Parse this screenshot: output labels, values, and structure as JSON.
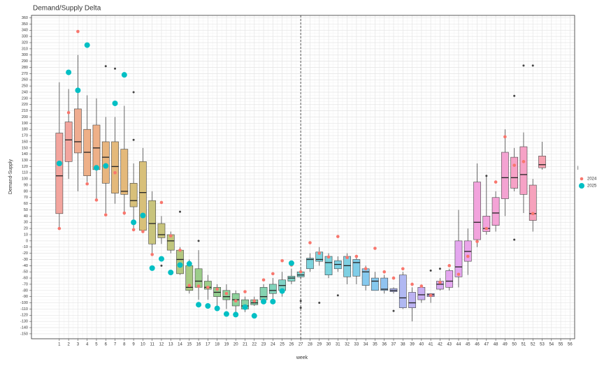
{
  "chart_data": {
    "type": "boxplot",
    "title": "Demand/Supply Delta",
    "x_label": "week",
    "y_label": "Demand-Supply",
    "legend_title": "l",
    "legend_position": "right",
    "grid": true,
    "vline": 27,
    "xlim": [
      -2,
      56.5
    ],
    "ylim": [
      -158,
      364
    ],
    "xticks": [
      1,
      2,
      3,
      4,
      5,
      6,
      7,
      8,
      9,
      10,
      11,
      12,
      13,
      14,
      15,
      16,
      17,
      18,
      19,
      20,
      21,
      22,
      23,
      24,
      25,
      26,
      27,
      28,
      29,
      30,
      31,
      32,
      33,
      34,
      35,
      36,
      37,
      38,
      39,
      40,
      41,
      42,
      43,
      44,
      45,
      46,
      47,
      48,
      49,
      50,
      51,
      52,
      53,
      54,
      55,
      56
    ],
    "yticks": [
      -150,
      -140,
      -130,
      -120,
      -110,
      -100,
      -90,
      -80,
      -70,
      -60,
      -50,
      -40,
      -30,
      -20,
      -10,
      0,
      10,
      20,
      30,
      40,
      50,
      60,
      70,
      80,
      90,
      100,
      110,
      120,
      130,
      140,
      150,
      160,
      170,
      180,
      190,
      200,
      210,
      220,
      230,
      240,
      250,
      260,
      270,
      280,
      290,
      300,
      310,
      320,
      330,
      340,
      350,
      360
    ],
    "boxes": [
      {
        "week": 1,
        "whisker_low": 20,
        "q1": 44,
        "median": 105,
        "q3": 174,
        "whisker_high": 256,
        "color": "#f3a59e"
      },
      {
        "week": 2,
        "whisker_low": 100,
        "q1": 128,
        "median": 163,
        "q3": 192,
        "whisker_high": 245,
        "color": "#f3a59e"
      },
      {
        "week": 3,
        "whisker_low": 80,
        "q1": 142,
        "median": 160,
        "q3": 213,
        "whisker_high": 300,
        "color": "#efac90"
      },
      {
        "week": 4,
        "whisker_low": 95,
        "q1": 105,
        "median": 143,
        "q3": 180,
        "whisker_high": 235,
        "color": "#eeb088"
      },
      {
        "week": 5,
        "whisker_low": 68,
        "q1": 115,
        "median": 150,
        "q3": 187,
        "whisker_high": 230,
        "color": "#eeb088"
      },
      {
        "week": 6,
        "whisker_low": 45,
        "q1": 93,
        "median": 135,
        "q3": 160,
        "whisker_high": 200,
        "color": "#e8b57e"
      },
      {
        "week": 7,
        "whisker_low": 60,
        "q1": 77,
        "median": 120,
        "q3": 160,
        "whisker_high": 200,
        "color": "#e4b97a"
      },
      {
        "week": 8,
        "whisker_low": 42,
        "q1": 75,
        "median": 80,
        "q3": 148,
        "whisker_high": 218,
        "color": "#e4b97a"
      },
      {
        "week": 9,
        "whisker_low": 20,
        "q1": 55,
        "median": 65,
        "q3": 93,
        "whisker_high": 125,
        "color": "#d8c07a"
      },
      {
        "week": 10,
        "whisker_low": 15,
        "q1": 17,
        "median": 78,
        "q3": 128,
        "whisker_high": 150,
        "color": "#d8c07a"
      },
      {
        "week": 11,
        "whisker_low": -20,
        "q1": -5,
        "median": 28,
        "q3": 65,
        "whisker_high": 80,
        "color": "#c8c47c"
      },
      {
        "week": 12,
        "whisker_low": -5,
        "q1": 5,
        "median": 10,
        "q3": 28,
        "whisker_high": 40,
        "color": "#c8c47c"
      },
      {
        "week": 13,
        "whisker_low": -20,
        "q1": -15,
        "median": 0,
        "q3": 10,
        "whisker_high": 15,
        "color": "#c0c67d"
      },
      {
        "week": 14,
        "whisker_low": -55,
        "q1": -53,
        "median": -30,
        "q3": -15,
        "whisker_high": -10,
        "color": "#b3c780"
      },
      {
        "week": 15,
        "whisker_low": -85,
        "q1": -80,
        "median": -75,
        "q3": -40,
        "whisker_high": -30,
        "color": "#a9ca84"
      },
      {
        "week": 16,
        "whisker_low": -95,
        "q1": -75,
        "median": -65,
        "q3": -45,
        "whisker_high": -15,
        "color": "#9ccd8a"
      },
      {
        "week": 17,
        "whisker_low": -95,
        "q1": -78,
        "median": -75,
        "q3": -65,
        "whisker_high": -55,
        "color": "#9ccd8a"
      },
      {
        "week": 18,
        "whisker_low": -105,
        "q1": -90,
        "median": -83,
        "q3": -75,
        "whisker_high": -70,
        "color": "#94cf90"
      },
      {
        "week": 19,
        "whisker_low": -110,
        "q1": -95,
        "median": -90,
        "q3": -80,
        "whisker_high": -70,
        "color": "#8dd19a"
      },
      {
        "week": 20,
        "whisker_low": -115,
        "q1": -105,
        "median": -95,
        "q3": -85,
        "whisker_high": -80,
        "color": "#8dd19a"
      },
      {
        "week": 21,
        "whisker_low": -115,
        "q1": -110,
        "median": -105,
        "q3": -95,
        "whisker_high": -90,
        "color": "#8ad2a4"
      },
      {
        "week": 22,
        "whisker_low": -105,
        "q1": -103,
        "median": -100,
        "q3": -95,
        "whisker_high": -90,
        "color": "#88d2aa"
      },
      {
        "week": 23,
        "whisker_low": -100,
        "q1": -95,
        "median": -90,
        "q3": -75,
        "whisker_high": -70,
        "color": "#85d3b0"
      },
      {
        "week": 24,
        "whisker_low": -95,
        "q1": -85,
        "median": -80,
        "q3": -70,
        "whisker_high": -60,
        "color": "#82d3bb"
      },
      {
        "week": 25,
        "whisker_low": -90,
        "q1": -80,
        "median": -72,
        "q3": -63,
        "whisker_high": -50,
        "color": "#7fd3c6"
      },
      {
        "week": 26,
        "whisker_low": -70,
        "q1": -65,
        "median": -60,
        "q3": -57,
        "whisker_high": -45,
        "color": "#7fd3c6"
      },
      {
        "week": 27,
        "whisker_low": -60,
        "q1": -58,
        "median": -55,
        "q3": -50,
        "whisker_high": -45,
        "color": "#7ed3d0"
      },
      {
        "week": 28,
        "whisker_low": -50,
        "q1": -45,
        "median": -30,
        "q3": -28,
        "whisker_high": -20,
        "color": "#7cd3dd"
      },
      {
        "week": 29,
        "whisker_low": -40,
        "q1": -33,
        "median": -30,
        "q3": -18,
        "whisker_high": -10,
        "color": "#7cd3dd"
      },
      {
        "week": 30,
        "whisker_low": -60,
        "q1": -55,
        "median": -35,
        "q3": -25,
        "whisker_high": -20,
        "color": "#7cd3dd"
      },
      {
        "week": 31,
        "whisker_low": -50,
        "q1": -45,
        "median": -38,
        "q3": -32,
        "whisker_high": -25,
        "color": "#7ed0e2"
      },
      {
        "week": 32,
        "whisker_low": -70,
        "q1": -58,
        "median": -40,
        "q3": -25,
        "whisker_high": -20,
        "color": "#7ed0e2"
      },
      {
        "week": 33,
        "whisker_low": -70,
        "q1": -57,
        "median": -35,
        "q3": -30,
        "whisker_high": -25,
        "color": "#80cde8"
      },
      {
        "week": 34,
        "whisker_low": -80,
        "q1": -72,
        "median": -50,
        "q3": -45,
        "whisker_high": -40,
        "color": "#86c9ee"
      },
      {
        "week": 35,
        "whisker_low": -80,
        "q1": -80,
        "median": -65,
        "q3": -60,
        "whisker_high": -50,
        "color": "#86c9ee"
      },
      {
        "week": 36,
        "whisker_low": -85,
        "q1": -80,
        "median": -78,
        "q3": -60,
        "whisker_high": -55,
        "color": "#90c3f0"
      },
      {
        "week": 37,
        "whisker_low": -85,
        "q1": -82,
        "median": -80,
        "q3": -77,
        "whisker_high": -75,
        "color": "#b0b8f2"
      },
      {
        "week": 38,
        "whisker_low": -110,
        "q1": -108,
        "median": -92,
        "q3": -55,
        "whisker_high": -50,
        "color": "#b0b8f2"
      },
      {
        "week": 39,
        "whisker_low": -130,
        "q1": -108,
        "median": -100,
        "q3": -83,
        "whisker_high": -75,
        "color": "#bcb3f2"
      },
      {
        "week": 40,
        "whisker_low": -100,
        "q1": -95,
        "median": -87,
        "q3": -75,
        "whisker_high": -72,
        "color": "#c8aef2"
      },
      {
        "week": 41,
        "whisker_low": -100,
        "q1": -90,
        "median": -87,
        "q3": -85,
        "whisker_high": -85,
        "color": "#c8aef2"
      },
      {
        "week": 42,
        "whisker_low": -80,
        "q1": -78,
        "median": -70,
        "q3": -65,
        "whisker_high": -60,
        "color": "#d6aaf1"
      },
      {
        "week": 43,
        "whisker_low": -80,
        "q1": -75,
        "median": -65,
        "q3": -48,
        "whisker_high": -45,
        "color": "#e4a6ef"
      },
      {
        "week": 44,
        "whisker_low": -75,
        "q1": -58,
        "median": -42,
        "q3": 0,
        "whisker_high": 50,
        "color": "#e4a6ef"
      },
      {
        "week": 45,
        "whisker_low": -55,
        "q1": -33,
        "median": -17,
        "q3": 0,
        "whisker_high": 20,
        "color": "#eaa5ea"
      },
      {
        "week": 46,
        "whisker_low": -10,
        "q1": 2,
        "median": 30,
        "q3": 95,
        "whisker_high": 125,
        "color": "#f2a3dd"
      },
      {
        "week": 47,
        "whisker_low": 10,
        "q1": 15,
        "median": 20,
        "q3": 40,
        "whisker_high": 105,
        "color": "#f2a3dd"
      },
      {
        "week": 48,
        "whisker_low": 15,
        "q1": 25,
        "median": 45,
        "q3": 70,
        "whisker_high": 80,
        "color": "#f4a3d6"
      },
      {
        "week": 49,
        "whisker_low": 40,
        "q1": 68,
        "median": 102,
        "q3": 143,
        "whisker_high": 180,
        "color": "#f4a3d2"
      },
      {
        "week": 50,
        "whisker_low": 80,
        "q1": 85,
        "median": 102,
        "q3": 135,
        "whisker_high": 150,
        "color": "#f6a2c6"
      },
      {
        "week": 51,
        "whisker_low": 45,
        "q1": 75,
        "median": 107,
        "q3": 152,
        "whisker_high": 175,
        "color": "#f6a2c6"
      },
      {
        "week": 52,
        "whisker_low": 15,
        "q1": 33,
        "median": 44,
        "q3": 90,
        "whisker_high": 100,
        "color": "#f6a2bc"
      },
      {
        "week": 53,
        "whisker_low": 115,
        "q1": 118,
        "median": 123,
        "q3": 137,
        "whisker_high": 160,
        "color": "#f7a3b2"
      }
    ],
    "outliers": {
      "color": "#444444",
      "x": [
        6,
        7,
        9,
        9,
        12,
        14,
        16,
        27,
        27,
        29,
        31,
        37,
        41,
        42,
        47,
        50,
        50,
        51,
        52
      ],
      "values": [
        282,
        278,
        240,
        163,
        -40,
        47,
        0,
        -97,
        -108,
        -100,
        -88,
        -113,
        -48,
        -45,
        105,
        234,
        2,
        283,
        283
      ]
    },
    "series": [
      {
        "name": "2024",
        "color": "#f8766d",
        "x": [
          1,
          2,
          3,
          4,
          5,
          6,
          7,
          8,
          9,
          10,
          11,
          12,
          13,
          14,
          15,
          16,
          17,
          18,
          19,
          20,
          21,
          22,
          23,
          24,
          25,
          26,
          27,
          28,
          29,
          30,
          31,
          32,
          33,
          34,
          35,
          36,
          37,
          38,
          39,
          40,
          41,
          42,
          43,
          44,
          45,
          46,
          47,
          48,
          49,
          50,
          51,
          52
        ],
        "values": [
          20,
          207,
          338,
          92,
          66,
          42,
          110,
          45,
          18,
          15,
          -22,
          62,
          8,
          -15,
          -72,
          -73,
          -75,
          -78,
          -85,
          -97,
          -82,
          -97,
          -63,
          -53,
          -32,
          -39,
          -50,
          -3,
          -20,
          -26,
          7,
          -27,
          -25,
          -45,
          -12,
          -50,
          -60,
          -45,
          -70,
          -73,
          -88,
          -67,
          -40,
          -54,
          -25,
          -1,
          20,
          95,
          168,
          122,
          128,
          44
        ]
      },
      {
        "name": "2025",
        "color": "#00bfc4",
        "x": [
          1,
          2,
          3,
          4,
          5,
          6,
          7,
          8,
          9,
          10,
          11,
          12,
          13,
          14,
          15,
          16,
          17,
          18,
          19,
          20,
          21,
          22,
          23,
          24,
          25,
          26
        ],
        "values": [
          125,
          272,
          243,
          316,
          118,
          121,
          222,
          268,
          30,
          41,
          -44,
          -29,
          -51,
          -39,
          -37,
          -103,
          -105,
          -109,
          -118,
          -119,
          -107,
          -121,
          -98,
          -98,
          -81,
          -36
        ]
      }
    ]
  }
}
